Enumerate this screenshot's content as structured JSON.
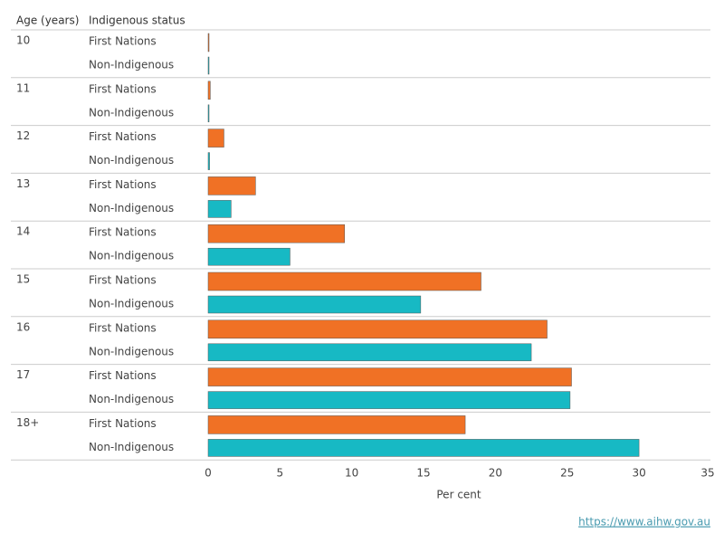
{
  "chart_data": {
    "type": "bar",
    "orientation": "horizontal",
    "row_header": "Age (years)",
    "series_header": "Indigenous status",
    "categories": [
      "10",
      "11",
      "12",
      "13",
      "14",
      "15",
      "16",
      "17",
      "18+"
    ],
    "series": [
      {
        "name": "First Nations",
        "color": "#f07125",
        "values": [
          0.05,
          0.15,
          1.1,
          3.3,
          9.5,
          19.0,
          23.6,
          25.3,
          17.9
        ]
      },
      {
        "name": "Non-Indigenous",
        "color": "#17b9c4",
        "values": [
          0.05,
          0.05,
          0.1,
          1.6,
          5.7,
          14.8,
          22.5,
          25.2,
          30.0
        ]
      }
    ],
    "xlim": [
      0,
      35
    ],
    "xticks": [
      0,
      5,
      10,
      15,
      20,
      25,
      30,
      35
    ],
    "xlabel": "Per cent",
    "source": "https://www.aihw.gov.au"
  }
}
